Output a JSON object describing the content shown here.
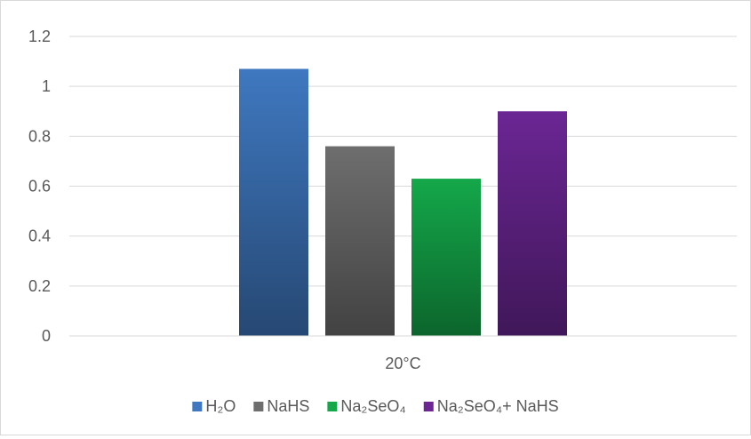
{
  "chart_data": {
    "type": "bar",
    "categories": [
      "20°C"
    ],
    "series": [
      {
        "name": "H₂O",
        "values": [
          1.07
        ],
        "color": "#3f78c0"
      },
      {
        "name": "NaHS",
        "values": [
          0.76
        ],
        "color": "#6e6e6e"
      },
      {
        "name": "Na₂SeO₄",
        "values": [
          0.63
        ],
        "color": "#14a84a"
      },
      {
        "name": "Na₂SeO₄+ NaHS",
        "values": [
          0.9
        ],
        "color": "#6b2694"
      }
    ],
    "title": "",
    "xlabel": "",
    "ylabel": "",
    "ylim": [
      0,
      1.2
    ],
    "yticks": [
      "0",
      "0.2",
      "0.4",
      "0.6",
      "0.8",
      "1",
      "1.2"
    ],
    "grid": true,
    "legend_position": "bottom",
    "gradient_fill": true
  }
}
